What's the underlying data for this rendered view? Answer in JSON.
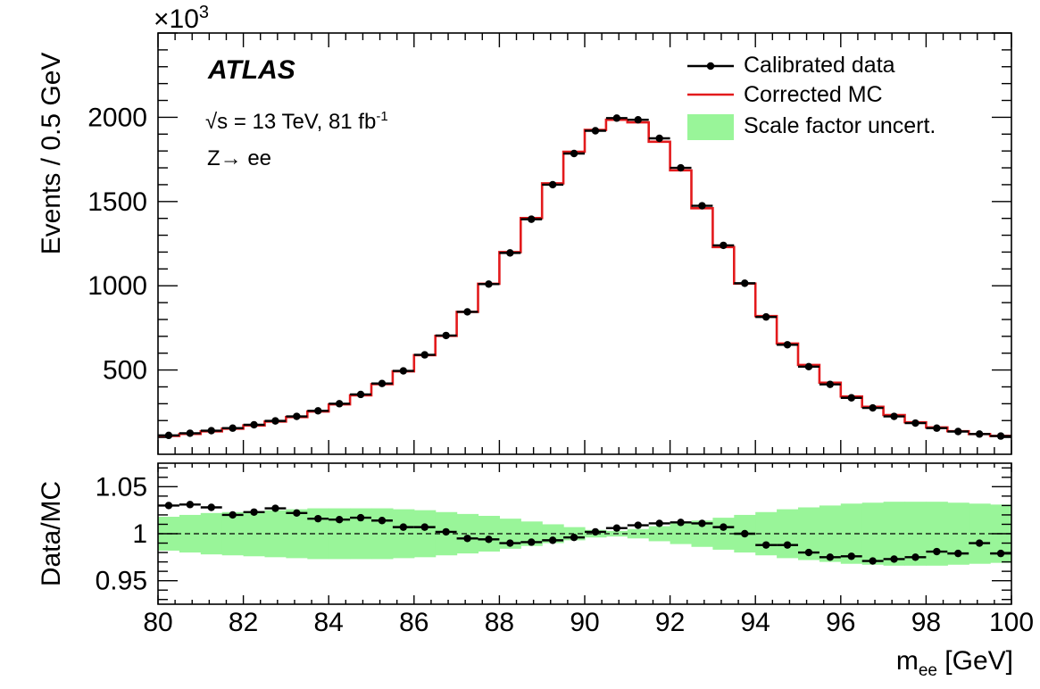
{
  "experiment_label": "ATLAS",
  "energy_prefix": "√s = 13 TeV, 81 fb",
  "energy_exp": "-1",
  "process_label": "Z→ ee",
  "exponent_base": "×10",
  "exponent_power": "3",
  "colors": {
    "data": "#000000",
    "mc": "#e31a1c",
    "band": "#99f599"
  },
  "chart_data": [
    {
      "type": "line",
      "panel": "main",
      "ylabel": "Events / 0.5 GeV",
      "xlim": [
        80,
        100
      ],
      "ylim": [
        0,
        2500
      ],
      "yticks": [
        500,
        1000,
        1500,
        2000
      ],
      "y_multiplier": "×10^3",
      "x": [
        80.25,
        80.75,
        81.25,
        81.75,
        82.25,
        82.75,
        83.25,
        83.75,
        84.25,
        84.75,
        85.25,
        85.75,
        86.25,
        86.75,
        87.25,
        87.75,
        88.25,
        88.75,
        89.25,
        89.75,
        90.25,
        90.75,
        91.25,
        91.75,
        92.25,
        92.75,
        93.25,
        93.75,
        94.25,
        94.75,
        95.25,
        95.75,
        96.25,
        96.75,
        97.25,
        97.75,
        98.25,
        98.75,
        99.25,
        99.75
      ],
      "series": [
        {
          "name": "Calibrated data",
          "values": [
            112,
            125,
            140,
            155,
            175,
            198,
            225,
            258,
            300,
            355,
            420,
            495,
            590,
            705,
            845,
            1010,
            1195,
            1395,
            1600,
            1785,
            1920,
            1995,
            1985,
            1875,
            1700,
            1475,
            1240,
            1015,
            815,
            650,
            520,
            415,
            335,
            275,
            225,
            185,
            155,
            135,
            120,
            108
          ]
        },
        {
          "name": "Corrected MC",
          "values": [
            109,
            121,
            136,
            152,
            171,
            194,
            221,
            254,
            296,
            350,
            416,
            492,
            588,
            703,
            845,
            1012,
            1200,
            1402,
            1608,
            1795,
            1925,
            1985,
            1970,
            1855,
            1685,
            1460,
            1230,
            1013,
            820,
            657,
            530,
            425,
            343,
            282,
            233,
            190,
            159,
            137,
            120,
            109
          ]
        }
      ],
      "legend_position": "top-right"
    },
    {
      "type": "line",
      "panel": "ratio",
      "xlabel": "m_ee [GeV]",
      "ylabel": "Data/MC",
      "xlim": [
        80,
        100
      ],
      "ylim": [
        0.925,
        1.075
      ],
      "yticks": [
        0.95,
        1,
        1.05
      ],
      "xticks": [
        80,
        82,
        84,
        86,
        88,
        90,
        92,
        94,
        96,
        98,
        100
      ],
      "x": [
        80.25,
        80.75,
        81.25,
        81.75,
        82.25,
        82.75,
        83.25,
        83.75,
        84.25,
        84.75,
        85.25,
        85.75,
        86.25,
        86.75,
        87.25,
        87.75,
        88.25,
        88.75,
        89.25,
        89.75,
        90.25,
        90.75,
        91.25,
        91.75,
        92.25,
        92.75,
        93.25,
        93.75,
        94.25,
        94.75,
        95.25,
        95.75,
        96.25,
        96.75,
        97.25,
        97.75,
        98.25,
        98.75,
        99.25,
        99.75
      ],
      "series": [
        {
          "name": "Calibrated data",
          "values": [
            1.03,
            1.031,
            1.028,
            1.02,
            1.023,
            1.027,
            1.022,
            1.016,
            1.015,
            1.017,
            1.014,
            1.007,
            1.007,
            1.002,
            0.995,
            0.994,
            0.99,
            0.991,
            0.993,
            0.996,
            1.002,
            1.006,
            1.009,
            1.011,
            1.012,
            1.011,
            1.007,
            1.0,
            0.988,
            0.988,
            0.98,
            0.975,
            0.976,
            0.971,
            0.973,
            0.975,
            0.981,
            0.979,
            0.99,
            0.979
          ]
        },
        {
          "name": "Scale factor uncert.",
          "band_half_width": [
            0.018,
            0.02,
            0.022,
            0.023,
            0.024,
            0.025,
            0.026,
            0.027,
            0.027,
            0.027,
            0.027,
            0.026,
            0.025,
            0.023,
            0.021,
            0.019,
            0.016,
            0.013,
            0.01,
            0.007,
            0.004,
            0.003,
            0.005,
            0.008,
            0.011,
            0.014,
            0.017,
            0.02,
            0.023,
            0.026,
            0.028,
            0.03,
            0.032,
            0.033,
            0.034,
            0.034,
            0.034,
            0.033,
            0.032,
            0.031
          ]
        }
      ],
      "reference_line": 1
    }
  ]
}
